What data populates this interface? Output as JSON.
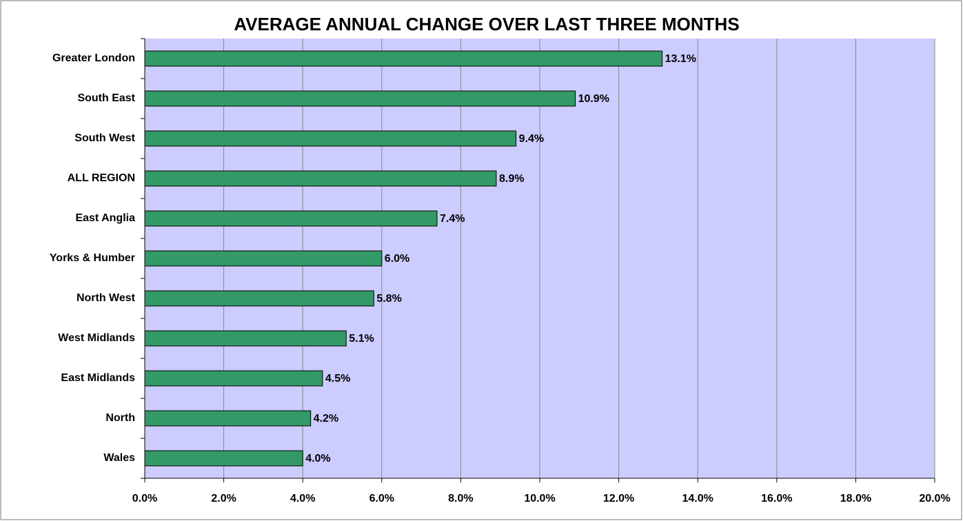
{
  "chart_data": {
    "type": "bar",
    "orientation": "horizontal",
    "title": "AVERAGE ANNUAL CHANGE OVER LAST THREE MONTHS",
    "categories": [
      "Greater London",
      "South East",
      "South West",
      "ALL REGION",
      "East Anglia",
      "Yorks & Humber",
      "North West",
      "West Midlands",
      "East Midlands",
      "North",
      "Wales"
    ],
    "values": [
      13.1,
      10.9,
      9.4,
      8.9,
      7.4,
      6.0,
      5.8,
      5.1,
      4.5,
      4.2,
      4.0
    ],
    "value_labels": [
      "13.1%",
      "10.9%",
      "9.4%",
      "8.9%",
      "7.4%",
      "6.0%",
      "5.8%",
      "5.1%",
      "4.5%",
      "4.2%",
      "4.0%"
    ],
    "color": "#339966",
    "xlim": [
      0,
      20
    ],
    "xticks": [
      {
        "value": 0,
        "label": "0.0%"
      },
      {
        "value": 2,
        "label": "2.0%"
      },
      {
        "value": 4,
        "label": "4.0%"
      },
      {
        "value": 6,
        "label": "6.0%"
      },
      {
        "value": 8,
        "label": "8.0%"
      },
      {
        "value": 10,
        "label": "10.0%"
      },
      {
        "value": 12,
        "label": "12.0%"
      },
      {
        "value": 14,
        "label": "14.0%"
      },
      {
        "value": 16,
        "label": "16.0%"
      },
      {
        "value": 18,
        "label": "18.0%"
      },
      {
        "value": 20,
        "label": "20.0%"
      }
    ],
    "grid": true
  }
}
